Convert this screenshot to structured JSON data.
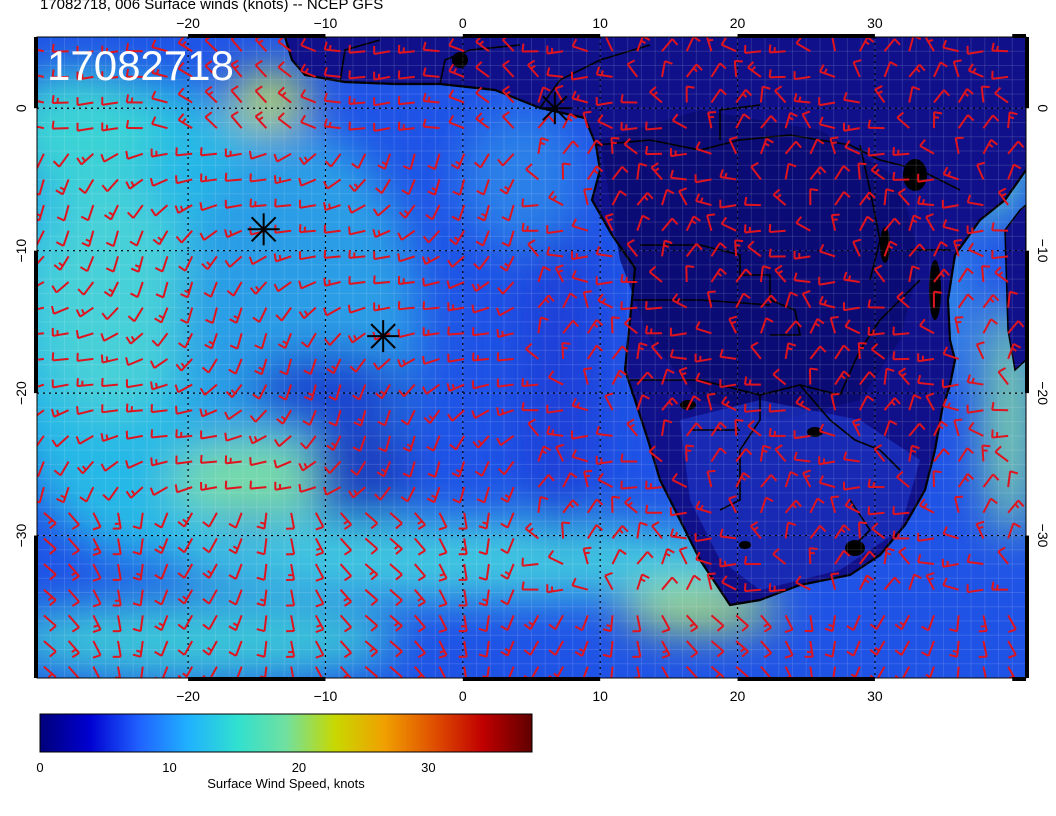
{
  "title": "17082718, 006 Surface winds (knots) -- NCEP GFS",
  "stamp": "17082718",
  "map": {
    "lon_range": [
      -31,
      41
    ],
    "lat_range": [
      -40,
      5
    ],
    "x_ticks": [
      "-20",
      "-10",
      "0",
      "10",
      "20",
      "30"
    ],
    "x_tick_values": [
      -20,
      -10,
      0,
      10,
      20,
      30
    ],
    "y_ticks": [
      "0",
      "-10",
      "-20",
      "-30"
    ],
    "y_tick_values": [
      0,
      -10,
      -20,
      -30
    ],
    "grid": true,
    "barb_color": "#e0141e",
    "coast_color": "#000000",
    "markers": [
      {
        "name": "storm-marker",
        "lon": -14.5,
        "lat": -8.5
      },
      {
        "name": "storm-marker",
        "lon": -5.8,
        "lat": -16.0
      },
      {
        "name": "storm-marker",
        "lon": 6.7,
        "lat": 0.0
      }
    ]
  },
  "colorbar": {
    "title": "Surface Wind Speed, knots",
    "ticks": [
      "0",
      "10",
      "20",
      "30"
    ],
    "tick_values": [
      0,
      10,
      20,
      30
    ],
    "range": [
      0,
      38
    ],
    "colors": [
      "#00007a",
      "#0000d0",
      "#2060ff",
      "#20b0ff",
      "#30e0d0",
      "#70e0a0",
      "#c8d800",
      "#f0a000",
      "#e05000",
      "#c00000",
      "#600000"
    ]
  }
}
